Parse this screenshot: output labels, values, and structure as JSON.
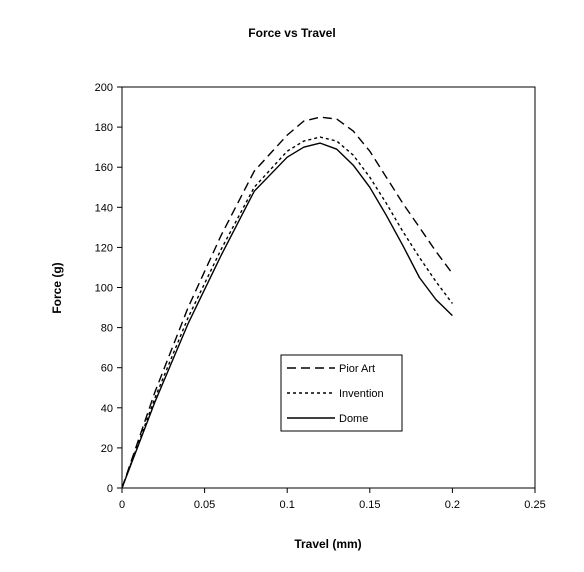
{
  "chart_data": {
    "type": "line",
    "title": "Force vs Travel",
    "xlabel": "Travel (mm)",
    "ylabel": "Force (g)",
    "xlim": [
      0,
      0.25
    ],
    "ylim": [
      0,
      200
    ],
    "xticks": [
      0,
      0.05,
      0.1,
      0.15,
      0.2,
      0.25
    ],
    "xtick_labels": [
      "0",
      "0.05",
      "0.1",
      "0.15",
      "0.2",
      "0.25"
    ],
    "yticks": [
      0,
      20,
      40,
      60,
      80,
      100,
      120,
      140,
      160,
      180,
      200
    ],
    "ytick_labels": [
      "0",
      "20",
      "40",
      "60",
      "80",
      "100",
      "120",
      "140",
      "160",
      "180",
      "200"
    ],
    "grid": false,
    "legend_position": "lower center",
    "series": [
      {
        "name": "Pior Art",
        "dash": "dashed",
        "x": [
          0,
          0.02,
          0.04,
          0.06,
          0.08,
          0.1,
          0.11,
          0.12,
          0.13,
          0.14,
          0.15,
          0.16,
          0.17,
          0.18,
          0.19,
          0.2
        ],
        "y": [
          0,
          48,
          90,
          126,
          158,
          176,
          183,
          185,
          184,
          178,
          168,
          155,
          142,
          130,
          118,
          107
        ]
      },
      {
        "name": "Invention",
        "dash": "dotted",
        "x": [
          0,
          0.02,
          0.04,
          0.06,
          0.08,
          0.1,
          0.11,
          0.12,
          0.13,
          0.14,
          0.15,
          0.16,
          0.17,
          0.18,
          0.19,
          0.2
        ],
        "y": [
          0,
          45,
          85,
          119,
          150,
          168,
          173,
          175,
          173,
          166,
          155,
          142,
          128,
          115,
          103,
          92
        ]
      },
      {
        "name": "Dome",
        "dash": "solid",
        "x": [
          0,
          0.02,
          0.04,
          0.06,
          0.08,
          0.1,
          0.11,
          0.12,
          0.13,
          0.14,
          0.15,
          0.16,
          0.17,
          0.18,
          0.19,
          0.2
        ],
        "y": [
          0,
          43,
          82,
          116,
          148,
          165,
          170,
          172,
          169,
          161,
          150,
          136,
          121,
          105,
          94,
          86
        ]
      }
    ]
  }
}
